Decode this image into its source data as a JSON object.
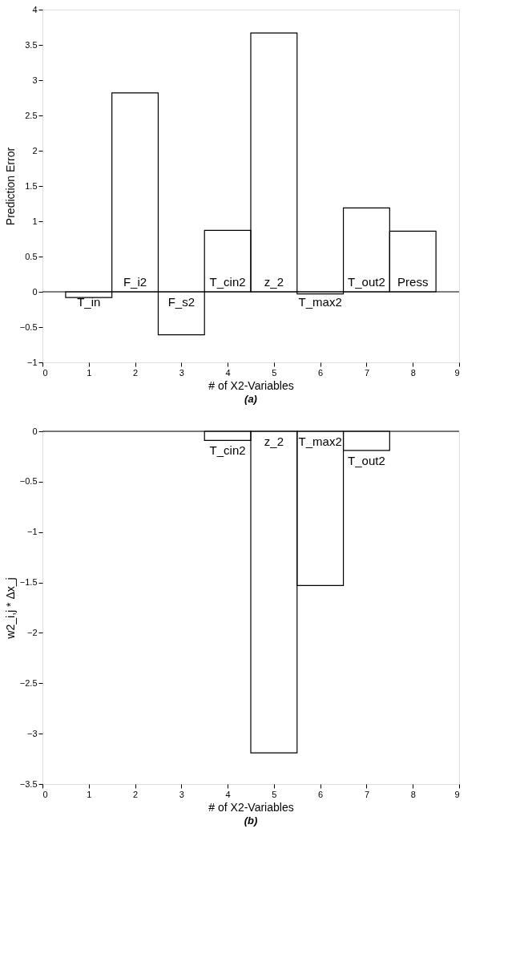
{
  "chart_data": [
    {
      "type": "bar",
      "x": [
        1,
        2,
        3,
        4,
        5,
        6,
        7,
        8
      ],
      "values": [
        -0.08,
        2.82,
        -0.61,
        0.87,
        3.67,
        -0.03,
        1.19,
        0.86
      ],
      "color": "#000000",
      "xlim": [
        0,
        9
      ],
      "xticks": [
        0,
        1,
        2,
        3,
        4,
        5,
        6,
        7,
        8,
        9
      ],
      "ylim": [
        -1,
        4
      ],
      "yticks": [
        -1,
        -0.5,
        0,
        0.5,
        1,
        1.5,
        2,
        2.5,
        3,
        3.5,
        4
      ],
      "xlabel": "# of X2-Variables",
      "ylabel": "Prediction Error",
      "grid": false,
      "ref_lines": [
        {
          "axis": "y",
          "value": 0
        }
      ],
      "annotations": [
        {
          "text": "T_in",
          "x": 1,
          "y": 0
        },
        {
          "text": "F_i2",
          "x": 2,
          "y": 0
        },
        {
          "text": "F_s2",
          "x": 3,
          "y": 0
        },
        {
          "text": "T_cin2",
          "x": 4,
          "y": 0
        },
        {
          "text": "z_2",
          "x": 5,
          "y": 0
        },
        {
          "text": "T_max2",
          "x": 6,
          "y": 0
        },
        {
          "text": "T_out2",
          "x": 7,
          "y": 0
        },
        {
          "text": "Press",
          "x": 8,
          "y": 0
        },
        "(a)"
      ]
    },
    {
      "type": "bar",
      "x": [
        4,
        5,
        6,
        7
      ],
      "values": [
        -0.09,
        -3.19,
        -1.53,
        -0.19
      ],
      "color": "#000000",
      "xlim": [
        0,
        9
      ],
      "xticks": [
        0,
        1,
        2,
        3,
        4,
        5,
        6,
        7,
        8,
        9
      ],
      "ylim": [
        -3.5,
        0
      ],
      "yticks": [
        -3.5,
        -3,
        -2.5,
        -2,
        -1.5,
        -1,
        -0.5,
        0
      ],
      "xlabel": "# of X2-Variables",
      "ylabel": "w2_i,j * Δx_j",
      "grid": false,
      "ref_lines": [
        {
          "axis": "y",
          "value": 0
        }
      ],
      "annotations": [
        {
          "text": "T_cin2",
          "x": 4,
          "y": -0.09
        },
        {
          "text": "z_2",
          "x": 5,
          "y": 0
        },
        {
          "text": "T_max2",
          "x": 6,
          "y": 0
        },
        {
          "text": "T_out2",
          "x": 7,
          "y": -0.19
        },
        "(b)"
      ]
    }
  ]
}
